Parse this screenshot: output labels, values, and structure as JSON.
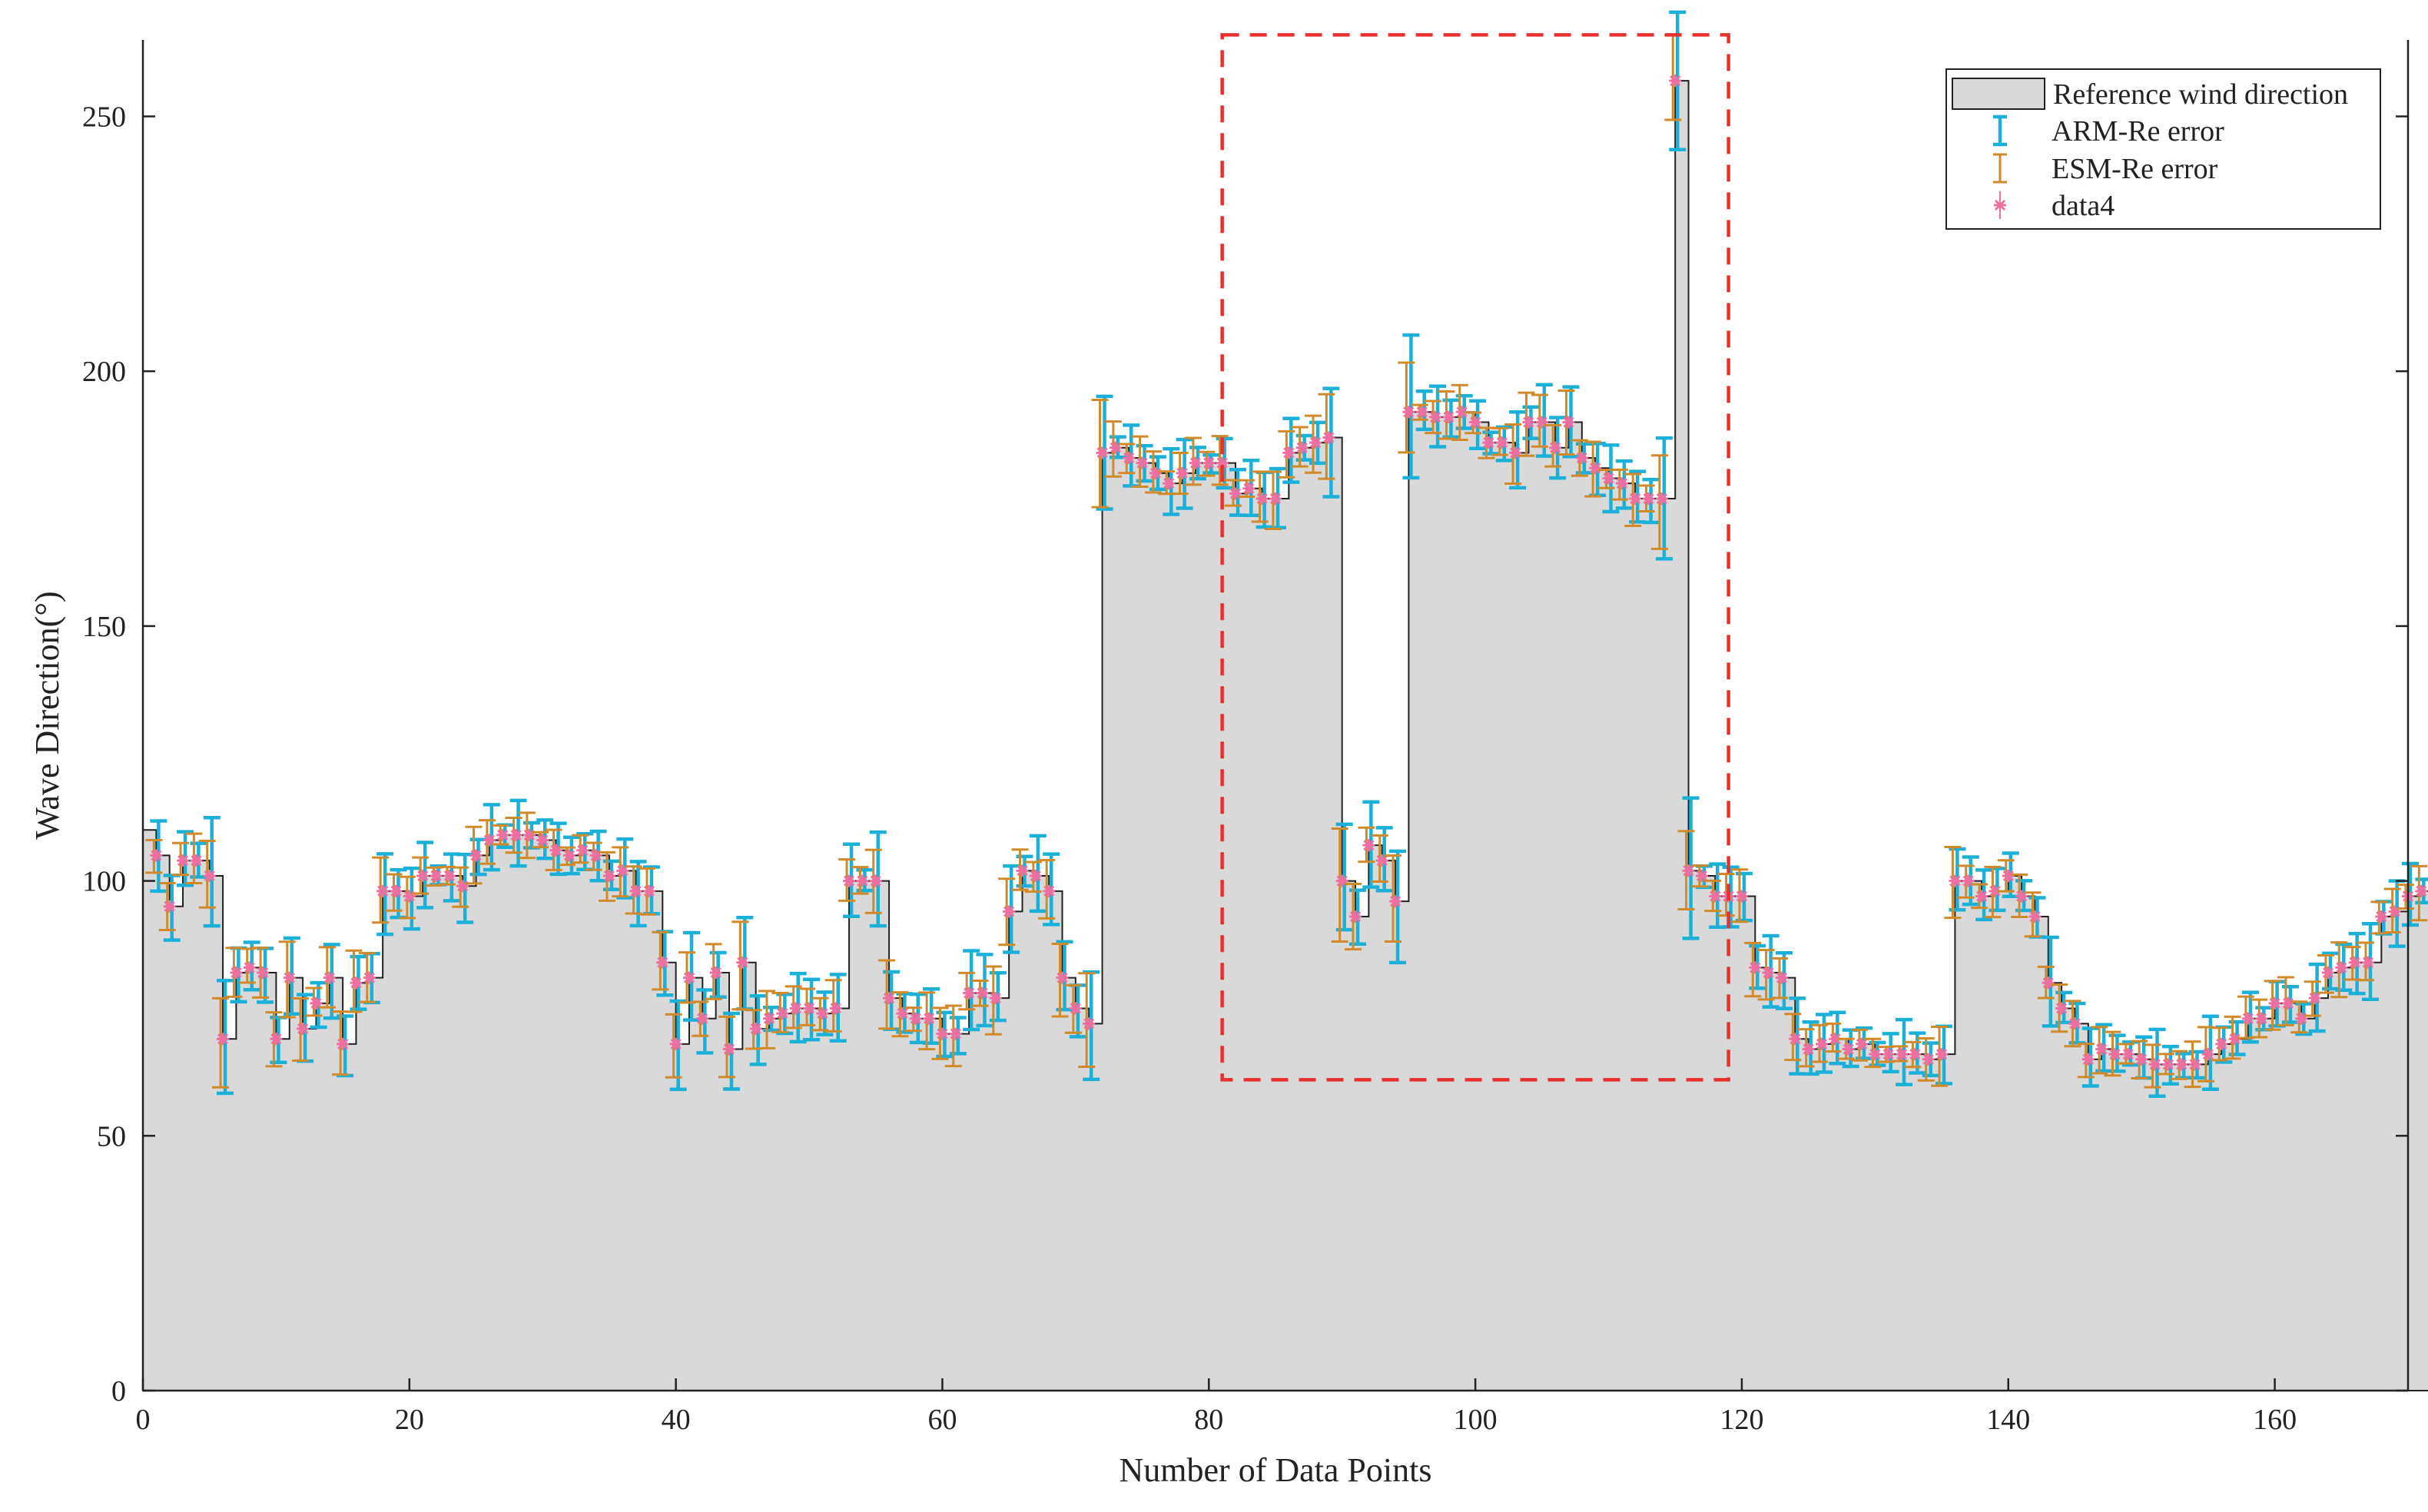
{
  "chart_data": {
    "type": "bar",
    "title": "",
    "xlabel": "Number of Data Points",
    "ylabel": "Wave Direction(°)",
    "xlim": [
      0,
      170
    ],
    "ylim": [
      0,
      265
    ],
    "xticks": [
      0,
      20,
      40,
      60,
      80,
      100,
      120,
      140,
      160
    ],
    "yticks": [
      0,
      50,
      100,
      150,
      200,
      250
    ],
    "grid": false,
    "legend_position": "top-right",
    "highlight_box": {
      "x": [
        81,
        119
      ],
      "y": [
        61,
        266
      ],
      "color": "#e8302f"
    },
    "series": [
      {
        "name": "Reference wind direction",
        "kind": "stairs-area",
        "color": "#d9d9d9"
      },
      {
        "name": "ARM-Re error",
        "kind": "errorbar",
        "color": "#1ab0d8"
      },
      {
        "name": "ESM-Re error",
        "kind": "errorbar",
        "color": "#d08a2a"
      },
      {
        "name": "data4",
        "kind": "marker",
        "color": "#f06ea0"
      }
    ],
    "reference_values": [
      110,
      105,
      95,
      104,
      104,
      101,
      69,
      82,
      83,
      82,
      69,
      81,
      71,
      76,
      81,
      68,
      80,
      81,
      98,
      98,
      97,
      101,
      101,
      101,
      99,
      105,
      108,
      109,
      109,
      109,
      108,
      106,
      105,
      106,
      105,
      101,
      102,
      98,
      98,
      84,
      68,
      81,
      73,
      82,
      67,
      84,
      71,
      73,
      74,
      75,
      75,
      74,
      75,
      100,
      100,
      100,
      77,
      74,
      73,
      73,
      70,
      70,
      78,
      78,
      77,
      94,
      102,
      101,
      98,
      81,
      75,
      72,
      184,
      185,
      183,
      182,
      180,
      178,
      180,
      182,
      182,
      182,
      176,
      177,
      175,
      175,
      184,
      185,
      186,
      187,
      100,
      93,
      107,
      104,
      96,
      192,
      192,
      191,
      191,
      192,
      190,
      186,
      186,
      184,
      190,
      190,
      185,
      190,
      183,
      181,
      179,
      178,
      175,
      175,
      175,
      257,
      102,
      101,
      97,
      97,
      97,
      83,
      82,
      81,
      69,
      67,
      68,
      69,
      67,
      68,
      66,
      66,
      66,
      66,
      65,
      66,
      100,
      100,
      97,
      98,
      101,
      97,
      93,
      80,
      75,
      72,
      65,
      67,
      66,
      66,
      65,
      64,
      64,
      64,
      64,
      66,
      68,
      69,
      73,
      73,
      76,
      76,
      73,
      77,
      82,
      83,
      84,
      84,
      93,
      94,
      97,
      98
    ]
  }
}
